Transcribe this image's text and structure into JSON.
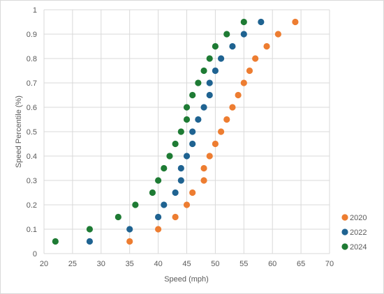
{
  "chart_data": {
    "type": "scatter",
    "xlabel": "Speed (mph)",
    "ylabel": "Speed Percentile (%)",
    "xlim": [
      20,
      70
    ],
    "ylim": [
      0,
      1
    ],
    "x_ticks": [
      "20",
      "25",
      "30",
      "35",
      "40",
      "45",
      "50",
      "55",
      "60",
      "65",
      "70"
    ],
    "y_ticks": [
      "0",
      "0.1",
      "0.2",
      "0.3",
      "0.4",
      "0.5",
      "0.6",
      "0.7",
      "0.8",
      "0.9",
      "1"
    ],
    "grid": "vertical and horizontal gridlines",
    "legend_position": "right-bottom",
    "series": [
      {
        "name": "2020",
        "color": "#ED7D31",
        "points": [
          {
            "x": 35,
            "y": 0.05
          },
          {
            "x": 40,
            "y": 0.1
          },
          {
            "x": 43,
            "y": 0.15
          },
          {
            "x": 45,
            "y": 0.2
          },
          {
            "x": 46,
            "y": 0.25
          },
          {
            "x": 48,
            "y": 0.3
          },
          {
            "x": 48,
            "y": 0.35
          },
          {
            "x": 49,
            "y": 0.4
          },
          {
            "x": 50,
            "y": 0.45
          },
          {
            "x": 51,
            "y": 0.5
          },
          {
            "x": 52,
            "y": 0.55
          },
          {
            "x": 53,
            "y": 0.6
          },
          {
            "x": 54,
            "y": 0.65
          },
          {
            "x": 55,
            "y": 0.7
          },
          {
            "x": 56,
            "y": 0.75
          },
          {
            "x": 57,
            "y": 0.8
          },
          {
            "x": 59,
            "y": 0.85
          },
          {
            "x": 61,
            "y": 0.9
          },
          {
            "x": 64,
            "y": 0.95
          }
        ]
      },
      {
        "name": "2022",
        "color": "#1F6391",
        "points": [
          {
            "x": 28,
            "y": 0.05
          },
          {
            "x": 35,
            "y": 0.1
          },
          {
            "x": 40,
            "y": 0.15
          },
          {
            "x": 41,
            "y": 0.2
          },
          {
            "x": 43,
            "y": 0.25
          },
          {
            "x": 44,
            "y": 0.3
          },
          {
            "x": 44,
            "y": 0.35
          },
          {
            "x": 45,
            "y": 0.4
          },
          {
            "x": 46,
            "y": 0.45
          },
          {
            "x": 46,
            "y": 0.5
          },
          {
            "x": 47,
            "y": 0.55
          },
          {
            "x": 48,
            "y": 0.6
          },
          {
            "x": 49,
            "y": 0.65
          },
          {
            "x": 49,
            "y": 0.7
          },
          {
            "x": 50,
            "y": 0.75
          },
          {
            "x": 51,
            "y": 0.8
          },
          {
            "x": 53,
            "y": 0.85
          },
          {
            "x": 55,
            "y": 0.9
          },
          {
            "x": 58,
            "y": 0.95
          }
        ]
      },
      {
        "name": "2024",
        "color": "#1E7B34",
        "points": [
          {
            "x": 22,
            "y": 0.05
          },
          {
            "x": 28,
            "y": 0.1
          },
          {
            "x": 33,
            "y": 0.15
          },
          {
            "x": 36,
            "y": 0.2
          },
          {
            "x": 39,
            "y": 0.25
          },
          {
            "x": 40,
            "y": 0.3
          },
          {
            "x": 41,
            "y": 0.35
          },
          {
            "x": 42,
            "y": 0.4
          },
          {
            "x": 43,
            "y": 0.45
          },
          {
            "x": 44,
            "y": 0.5
          },
          {
            "x": 45,
            "y": 0.55
          },
          {
            "x": 45,
            "y": 0.6
          },
          {
            "x": 46,
            "y": 0.65
          },
          {
            "x": 47,
            "y": 0.7
          },
          {
            "x": 48,
            "y": 0.75
          },
          {
            "x": 49,
            "y": 0.8
          },
          {
            "x": 50,
            "y": 0.85
          },
          {
            "x": 52,
            "y": 0.9
          },
          {
            "x": 55,
            "y": 0.95
          }
        ]
      }
    ]
  }
}
